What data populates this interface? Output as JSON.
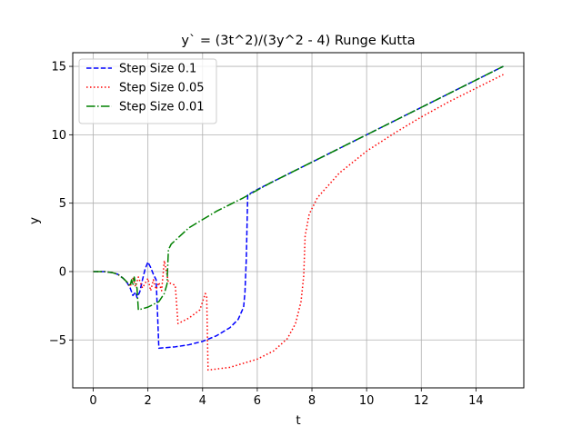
{
  "chart_data": {
    "type": "line",
    "title": "y` = (3t^2)/(3y^2 - 4) Runge Kutta",
    "xlabel": "t",
    "ylabel": "y",
    "xlim": [
      -0.75,
      15.75
    ],
    "ylim": [
      -8.5,
      16.0
    ],
    "xticks": [
      0,
      2,
      4,
      6,
      8,
      10,
      12,
      14
    ],
    "yticks": [
      -5,
      0,
      5,
      10,
      15
    ],
    "grid": true,
    "legend_position": "top-left",
    "series": [
      {
        "name": "Step Size 0.1",
        "color": "#0000ff",
        "style": "dashed",
        "points": [
          [
            0,
            0
          ],
          [
            0.4,
            0
          ],
          [
            0.7,
            -0.08
          ],
          [
            0.9,
            -0.2
          ],
          [
            1.1,
            -0.5
          ],
          [
            1.25,
            -0.85
          ],
          [
            1.35,
            -1.2
          ],
          [
            1.45,
            -1.75
          ],
          [
            1.55,
            -1.5
          ],
          [
            1.6,
            -1.9
          ],
          [
            1.7,
            -1.5
          ],
          [
            1.8,
            -0.6
          ],
          [
            1.9,
            0.2
          ],
          [
            2.0,
            0.7
          ],
          [
            2.1,
            0.3
          ],
          [
            2.2,
            -0.2
          ],
          [
            2.3,
            -0.6
          ],
          [
            2.35,
            -3
          ],
          [
            2.4,
            -5.6
          ],
          [
            3.0,
            -5.5
          ],
          [
            3.5,
            -5.35
          ],
          [
            4.0,
            -5.1
          ],
          [
            4.5,
            -4.7
          ],
          [
            5.0,
            -4.1
          ],
          [
            5.3,
            -3.5
          ],
          [
            5.5,
            -2.6
          ],
          [
            5.55,
            -1.5
          ],
          [
            5.6,
            1
          ],
          [
            5.65,
            5.6
          ],
          [
            6,
            6
          ],
          [
            8,
            8
          ],
          [
            10,
            10
          ],
          [
            12,
            12
          ],
          [
            15,
            15
          ]
        ]
      },
      {
        "name": "Step Size 0.05",
        "color": "#ff0000",
        "style": "dotted",
        "points": [
          [
            0,
            0
          ],
          [
            0.4,
            0
          ],
          [
            0.7,
            -0.08
          ],
          [
            0.9,
            -0.2
          ],
          [
            1.1,
            -0.5
          ],
          [
            1.25,
            -0.8
          ],
          [
            1.35,
            -1.1
          ],
          [
            1.45,
            -0.5
          ],
          [
            1.55,
            -1.1
          ],
          [
            1.65,
            -0.4
          ],
          [
            1.8,
            -1.2
          ],
          [
            2.0,
            -0.5
          ],
          [
            2.1,
            -1.4
          ],
          [
            2.2,
            -0.6
          ],
          [
            2.3,
            -1.3
          ],
          [
            2.4,
            -0.8
          ],
          [
            2.5,
            -1.4
          ],
          [
            2.6,
            0.8
          ],
          [
            2.75,
            -0.8
          ],
          [
            3.0,
            -1.0
          ],
          [
            3.1,
            -3.8
          ],
          [
            3.5,
            -3.4
          ],
          [
            3.9,
            -2.8
          ],
          [
            4.1,
            -1.6
          ],
          [
            4.15,
            -1.8
          ],
          [
            4.2,
            -7.2
          ],
          [
            5,
            -7.0
          ],
          [
            6,
            -6.4
          ],
          [
            6.6,
            -5.8
          ],
          [
            7.1,
            -4.9
          ],
          [
            7.4,
            -3.8
          ],
          [
            7.6,
            -2.2
          ],
          [
            7.7,
            -0.3
          ],
          [
            7.75,
            2.6
          ],
          [
            7.9,
            4.2
          ],
          [
            8.2,
            5.4
          ],
          [
            9,
            7.2
          ],
          [
            10,
            8.8
          ],
          [
            11,
            10.1
          ],
          [
            12,
            11.3
          ],
          [
            13,
            12.4
          ],
          [
            14,
            13.4
          ],
          [
            15,
            14.4
          ]
        ]
      },
      {
        "name": "Step Size 0.01",
        "color": "#008000",
        "style": "dashdot",
        "points": [
          [
            0,
            0
          ],
          [
            0.4,
            0
          ],
          [
            0.7,
            -0.08
          ],
          [
            0.9,
            -0.2
          ],
          [
            1.1,
            -0.5
          ],
          [
            1.25,
            -0.8
          ],
          [
            1.35,
            -1.05
          ],
          [
            1.4,
            -0.6
          ],
          [
            1.45,
            -1.0
          ],
          [
            1.5,
            -0.4
          ],
          [
            1.55,
            -0.9
          ],
          [
            1.6,
            -1.2
          ],
          [
            1.65,
            -2.8
          ],
          [
            2.0,
            -2.6
          ],
          [
            2.4,
            -2.2
          ],
          [
            2.6,
            -1.6
          ],
          [
            2.7,
            -0.9
          ],
          [
            2.72,
            0.2
          ],
          [
            2.75,
            1.6
          ],
          [
            2.85,
            2.0
          ],
          [
            3.5,
            3.2
          ],
          [
            4.5,
            4.4
          ],
          [
            5.5,
            5.4
          ],
          [
            6.5,
            6.5
          ],
          [
            8,
            8
          ],
          [
            10,
            10
          ],
          [
            12,
            12
          ],
          [
            15,
            15
          ]
        ]
      }
    ]
  }
}
